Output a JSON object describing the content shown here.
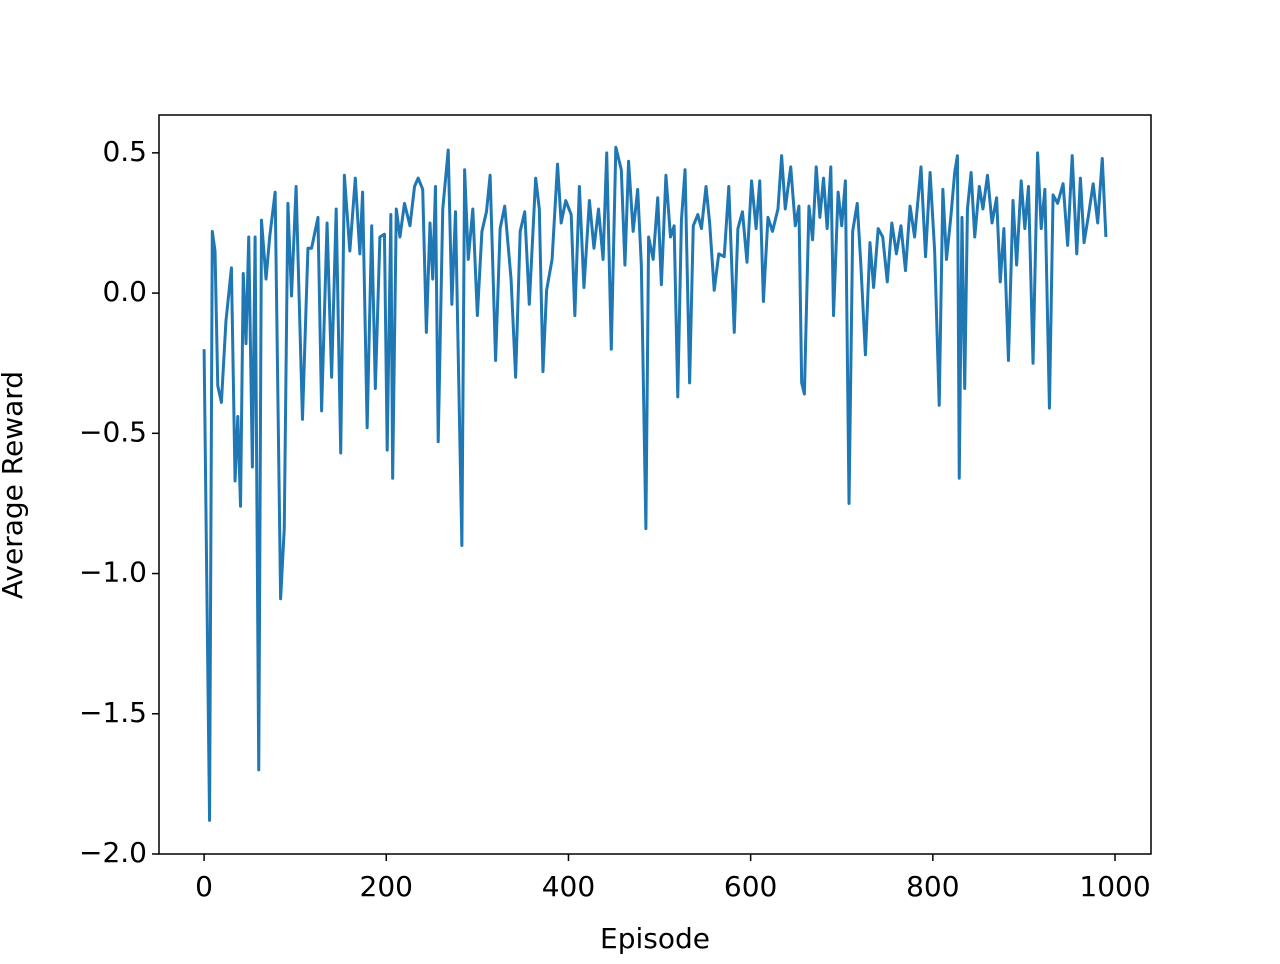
{
  "chart_data": {
    "type": "line",
    "xlabel": "Episode",
    "ylabel": "Average Reward",
    "xlim": [
      -49.5,
      1039.5
    ],
    "ylim": [
      -2.0,
      0.635
    ],
    "xticks": [
      0,
      200,
      400,
      600,
      800,
      1000
    ],
    "yticks": [
      {
        "value": -2.0,
        "label": "−2.0"
      },
      {
        "value": -1.5,
        "label": "−1.5"
      },
      {
        "value": -1.0,
        "label": "−1.0"
      },
      {
        "value": -0.5,
        "label": "−0.5"
      },
      {
        "value": 0.0,
        "label": "0.0"
      },
      {
        "value": 0.5,
        "label": "0.5"
      }
    ],
    "series": [
      {
        "color": "#1f77b4",
        "x": [
          0,
          6,
          9,
          12,
          15,
          19,
          24,
          30,
          34,
          37,
          40,
          43,
          46,
          49,
          53,
          56,
          60,
          63,
          68,
          72,
          78,
          84,
          88,
          92,
          96,
          101,
          108,
          114,
          118,
          125,
          129,
          135,
          140,
          145,
          150,
          154,
          160,
          166,
          171,
          174,
          179,
          184,
          188,
          193,
          198,
          201,
          205,
          207,
          211,
          215,
          220,
          226,
          231,
          235,
          240,
          244,
          248,
          251,
          254,
          257,
          262,
          268,
          272,
          276,
          283,
          286,
          290,
          295,
          300,
          305,
          310,
          314,
          320,
          325,
          330,
          337,
          342,
          347,
          352,
          357,
          364,
          368,
          372,
          376,
          382,
          388,
          392,
          397,
          403,
          407,
          412,
          417,
          423,
          428,
          433,
          438,
          442,
          447,
          452,
          458,
          462,
          466,
          471,
          476,
          480,
          485,
          488,
          493,
          498,
          502,
          507,
          512,
          516,
          520,
          524,
          528,
          533,
          537,
          542,
          546,
          551,
          555,
          560,
          565,
          571,
          576,
          582,
          586,
          591,
          596,
          601,
          606,
          610,
          614,
          619,
          624,
          630,
          634,
          638,
          644,
          649,
          653,
          656,
          659,
          664,
          668,
          672,
          676,
          680,
          684,
          688,
          691,
          696,
          700,
          704,
          708,
          712,
          717,
          721,
          726,
          731,
          735,
          740,
          745,
          750,
          755,
          760,
          765,
          770,
          775,
          780,
          787,
          792,
          797,
          802,
          807,
          811,
          815,
          820,
          824,
          827,
          829,
          832,
          835,
          838,
          842,
          846,
          851,
          855,
          860,
          865,
          870,
          874,
          878,
          883,
          888,
          892,
          897,
          901,
          905,
          910,
          915,
          919,
          923,
          928,
          932,
          937,
          943,
          948,
          953,
          958,
          962,
          966,
          971,
          976,
          981,
          986,
          990
        ],
        "values": [
          -0.2,
          -1.88,
          0.22,
          0.15,
          -0.33,
          -0.39,
          -0.1,
          0.09,
          -0.67,
          -0.44,
          -0.76,
          0.07,
          -0.18,
          0.2,
          -0.62,
          0.2,
          -1.7,
          0.26,
          0.05,
          0.2,
          0.36,
          -1.09,
          -0.84,
          0.32,
          -0.01,
          0.38,
          -0.45,
          0.16,
          0.16,
          0.27,
          -0.42,
          0.25,
          -0.3,
          0.3,
          -0.57,
          0.42,
          0.15,
          0.41,
          0.14,
          0.36,
          -0.48,
          0.24,
          -0.34,
          0.2,
          0.21,
          -0.56,
          0.28,
          -0.66,
          0.3,
          0.2,
          0.32,
          0.24,
          0.38,
          0.41,
          0.37,
          -0.14,
          0.25,
          0.05,
          0.38,
          -0.53,
          0.3,
          0.51,
          -0.04,
          0.29,
          -0.9,
          0.44,
          0.12,
          0.3,
          -0.08,
          0.22,
          0.29,
          0.42,
          -0.24,
          0.23,
          0.31,
          0.05,
          -0.3,
          0.22,
          0.29,
          -0.04,
          0.41,
          0.3,
          -0.28,
          0.01,
          0.12,
          0.46,
          0.25,
          0.33,
          0.28,
          -0.08,
          0.38,
          0.02,
          0.33,
          0.16,
          0.3,
          0.12,
          0.5,
          -0.2,
          0.52,
          0.44,
          0.1,
          0.47,
          0.22,
          0.37,
          0.1,
          -0.84,
          0.2,
          0.12,
          0.34,
          0.03,
          0.42,
          0.2,
          0.24,
          -0.37,
          0.26,
          0.44,
          -0.32,
          0.24,
          0.28,
          0.23,
          0.38,
          0.25,
          0.01,
          0.14,
          0.13,
          0.38,
          -0.14,
          0.23,
          0.29,
          0.11,
          0.4,
          0.23,
          0.4,
          -0.03,
          0.27,
          0.22,
          0.3,
          0.49,
          0.3,
          0.45,
          0.24,
          0.31,
          -0.32,
          -0.36,
          0.31,
          0.19,
          0.45,
          0.27,
          0.41,
          0.23,
          0.45,
          -0.08,
          0.36,
          0.24,
          0.4,
          -0.75,
          0.22,
          0.32,
          0.1,
          -0.22,
          0.18,
          0.02,
          0.23,
          0.2,
          0.04,
          0.25,
          0.14,
          0.24,
          0.08,
          0.31,
          0.2,
          0.45,
          0.13,
          0.43,
          0.15,
          -0.4,
          0.37,
          0.12,
          0.28,
          0.43,
          0.49,
          -0.66,
          0.27,
          -0.34,
          0.3,
          0.43,
          0.2,
          0.38,
          0.3,
          0.42,
          0.25,
          0.34,
          0.04,
          0.23,
          -0.24,
          0.33,
          0.1,
          0.4,
          0.23,
          0.38,
          -0.25,
          0.5,
          0.23,
          0.37,
          -0.41,
          0.35,
          0.32,
          0.39,
          0.17,
          0.49,
          0.14,
          0.41,
          0.18,
          0.28,
          0.39,
          0.25,
          0.48,
          0.2
        ]
      }
    ]
  }
}
